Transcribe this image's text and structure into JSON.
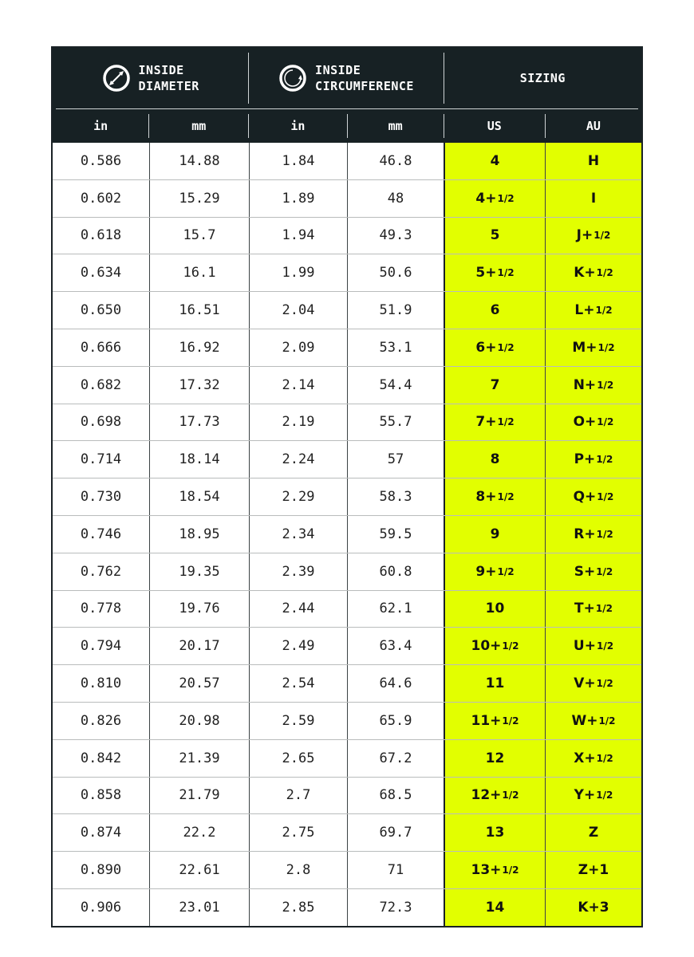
{
  "header": {
    "groups": [
      {
        "icon": "diameter-icon",
        "line1": "INSIDE",
        "line2": "DIAMETER"
      },
      {
        "icon": "circumference-icon",
        "line1": "INSIDE",
        "line2": "CIRCUMFERENCE"
      },
      {
        "label": "SIZING"
      }
    ],
    "columns": [
      "in",
      "mm",
      "in",
      "mm",
      "US",
      "AU"
    ]
  },
  "colors": {
    "header_bg": "#172124",
    "highlight": "#e2ff00"
  },
  "rows": [
    {
      "d_in": "0.586",
      "d_mm": "14.88",
      "c_in": "1.84",
      "c_mm": "46.8",
      "us": "4",
      "us_frac": "",
      "au": "H",
      "au_frac": ""
    },
    {
      "d_in": "0.602",
      "d_mm": "15.29",
      "c_in": "1.89",
      "c_mm": "48",
      "us": "4+",
      "us_frac": "1/2",
      "au": "I",
      "au_frac": ""
    },
    {
      "d_in": "0.618",
      "d_mm": "15.7",
      "c_in": "1.94",
      "c_mm": "49.3",
      "us": "5",
      "us_frac": "",
      "au": "J+",
      "au_frac": "1/2"
    },
    {
      "d_in": "0.634",
      "d_mm": "16.1",
      "c_in": "1.99",
      "c_mm": "50.6",
      "us": "5+",
      "us_frac": "1/2",
      "au": "K+",
      "au_frac": "1/2"
    },
    {
      "d_in": "0.650",
      "d_mm": "16.51",
      "c_in": "2.04",
      "c_mm": "51.9",
      "us": "6",
      "us_frac": "",
      "au": "L+",
      "au_frac": "1/2"
    },
    {
      "d_in": "0.666",
      "d_mm": "16.92",
      "c_in": "2.09",
      "c_mm": "53.1",
      "us": "6+",
      "us_frac": "1/2",
      "au": "M+",
      "au_frac": "1/2"
    },
    {
      "d_in": "0.682",
      "d_mm": "17.32",
      "c_in": "2.14",
      "c_mm": "54.4",
      "us": "7",
      "us_frac": "",
      "au": "N+",
      "au_frac": "1/2"
    },
    {
      "d_in": "0.698",
      "d_mm": "17.73",
      "c_in": "2.19",
      "c_mm": "55.7",
      "us": "7+",
      "us_frac": "1/2",
      "au": "O+",
      "au_frac": "1/2"
    },
    {
      "d_in": "0.714",
      "d_mm": "18.14",
      "c_in": "2.24",
      "c_mm": "57",
      "us": "8",
      "us_frac": "",
      "au": "P+",
      "au_frac": "1/2"
    },
    {
      "d_in": "0.730",
      "d_mm": "18.54",
      "c_in": "2.29",
      "c_mm": "58.3",
      "us": "8+",
      "us_frac": "1/2",
      "au": "Q+",
      "au_frac": "1/2"
    },
    {
      "d_in": "0.746",
      "d_mm": "18.95",
      "c_in": "2.34",
      "c_mm": "59.5",
      "us": "9",
      "us_frac": "",
      "au": "R+",
      "au_frac": "1/2"
    },
    {
      "d_in": "0.762",
      "d_mm": "19.35",
      "c_in": "2.39",
      "c_mm": "60.8",
      "us": "9+",
      "us_frac": "1/2",
      "au": "S+",
      "au_frac": "1/2"
    },
    {
      "d_in": "0.778",
      "d_mm": "19.76",
      "c_in": "2.44",
      "c_mm": "62.1",
      "us": "10",
      "us_frac": "",
      "au": "T+",
      "au_frac": "1/2"
    },
    {
      "d_in": "0.794",
      "d_mm": "20.17",
      "c_in": "2.49",
      "c_mm": "63.4",
      "us": "10+",
      "us_frac": "1/2",
      "au": "U+",
      "au_frac": "1/2"
    },
    {
      "d_in": "0.810",
      "d_mm": "20.57",
      "c_in": "2.54",
      "c_mm": "64.6",
      "us": "11",
      "us_frac": "",
      "au": "V+",
      "au_frac": "1/2"
    },
    {
      "d_in": "0.826",
      "d_mm": "20.98",
      "c_in": "2.59",
      "c_mm": "65.9",
      "us": "11+",
      "us_frac": "1/2",
      "au": "W+",
      "au_frac": "1/2"
    },
    {
      "d_in": "0.842",
      "d_mm": "21.39",
      "c_in": "2.65",
      "c_mm": "67.2",
      "us": "12",
      "us_frac": "",
      "au": "X+",
      "au_frac": "1/2"
    },
    {
      "d_in": "0.858",
      "d_mm": "21.79",
      "c_in": "2.7",
      "c_mm": "68.5",
      "us": "12+",
      "us_frac": "1/2",
      "au": "Y+",
      "au_frac": "1/2"
    },
    {
      "d_in": "0.874",
      "d_mm": "22.2",
      "c_in": "2.75",
      "c_mm": "69.7",
      "us": "13",
      "us_frac": "",
      "au": "Z",
      "au_frac": ""
    },
    {
      "d_in": "0.890",
      "d_mm": "22.61",
      "c_in": "2.8",
      "c_mm": "71",
      "us": "13+",
      "us_frac": "1/2",
      "au": "Z+1",
      "au_frac": ""
    },
    {
      "d_in": "0.906",
      "d_mm": "23.01",
      "c_in": "2.85",
      "c_mm": "72.3",
      "us": "14",
      "us_frac": "",
      "au": "K+3",
      "au_frac": ""
    }
  ]
}
